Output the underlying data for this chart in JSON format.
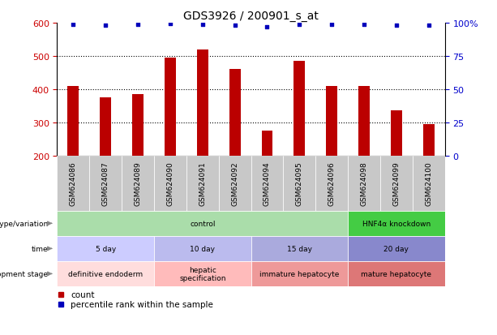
{
  "title": "GDS3926 / 200901_s_at",
  "samples": [
    "GSM624086",
    "GSM624087",
    "GSM624089",
    "GSM624090",
    "GSM624091",
    "GSM624092",
    "GSM624094",
    "GSM624095",
    "GSM624096",
    "GSM624098",
    "GSM624099",
    "GSM624100"
  ],
  "counts": [
    410,
    375,
    385,
    495,
    520,
    460,
    275,
    485,
    410,
    410,
    335,
    295
  ],
  "percentiles": [
    99,
    98,
    99,
    99.5,
    99,
    98,
    97,
    99,
    99,
    99,
    98,
    98
  ],
  "bar_color": "#bb0000",
  "dot_color": "#0000bb",
  "ylim_left": [
    200,
    600
  ],
  "ylim_right": [
    0,
    100
  ],
  "yticks_left": [
    200,
    300,
    400,
    500,
    600
  ],
  "yticks_right": [
    0,
    25,
    50,
    75,
    100
  ],
  "plot_bg": "#ffffff",
  "xlabel_bg": "#c8c8c8",
  "annotation_rows": [
    {
      "label": "genotype/variation",
      "segments": [
        {
          "text": "control",
          "span": [
            0,
            9
          ],
          "color": "#aaddaa"
        },
        {
          "text": "HNF4α knockdown",
          "span": [
            9,
            12
          ],
          "color": "#44cc44"
        }
      ]
    },
    {
      "label": "time",
      "segments": [
        {
          "text": "5 day",
          "span": [
            0,
            3
          ],
          "color": "#ccccff"
        },
        {
          "text": "10 day",
          "span": [
            3,
            6
          ],
          "color": "#bbbbee"
        },
        {
          "text": "15 day",
          "span": [
            6,
            9
          ],
          "color": "#aaaadd"
        },
        {
          "text": "20 day",
          "span": [
            9,
            12
          ],
          "color": "#8888cc"
        }
      ]
    },
    {
      "label": "development stage",
      "segments": [
        {
          "text": "definitive endoderm",
          "span": [
            0,
            3
          ],
          "color": "#ffdddd"
        },
        {
          "text": "hepatic\nspecification",
          "span": [
            3,
            6
          ],
          "color": "#ffbbbb"
        },
        {
          "text": "immature hepatocyte",
          "span": [
            6,
            9
          ],
          "color": "#ee9999"
        },
        {
          "text": "mature hepatocyte",
          "span": [
            9,
            12
          ],
          "color": "#dd7777"
        }
      ]
    }
  ]
}
